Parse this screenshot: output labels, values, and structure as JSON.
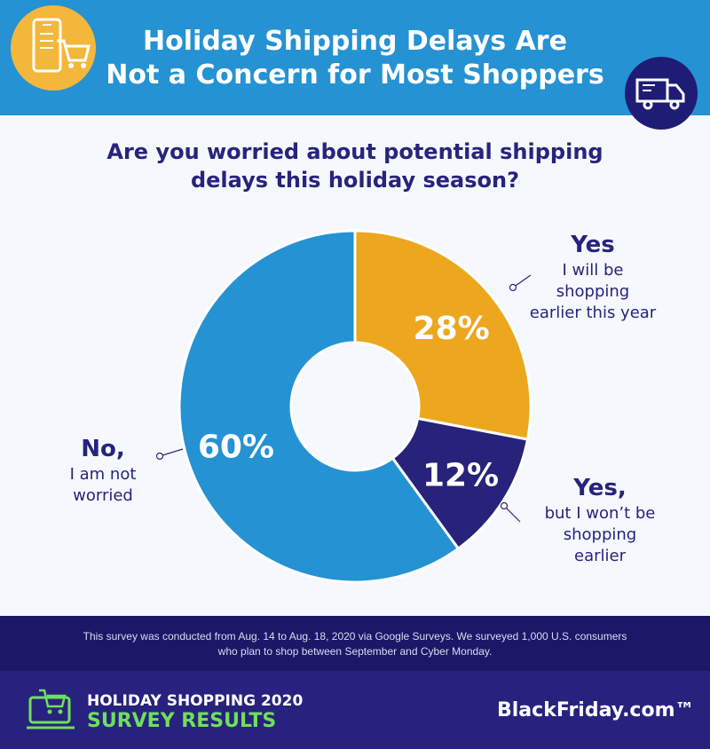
{
  "header": {
    "title_line1": "Holiday Shipping Delays Are",
    "title_line2": "Not a Concern for Most Shoppers",
    "left_icon": "phone-cart-icon",
    "right_icon": "delivery-truck-icon"
  },
  "colors": {
    "header_bg": "#2592d3",
    "yes_shopping_earlier": "#eda71e",
    "yes_not_earlier": "#27227a",
    "no_not_worried": "#2592d3",
    "text_dark": "#27247d",
    "accent_green": "#6fe05a"
  },
  "question": {
    "line1": "Are you worried about potential shipping",
    "line2": "delays this holiday season?"
  },
  "chart_data": {
    "type": "pie",
    "donut": true,
    "categories": [
      "Yes, I will be shopping earlier this year",
      "Yes, but I won't be shopping earlier",
      "No, I am not worried"
    ],
    "values": [
      28,
      12,
      60
    ],
    "value_labels": [
      "28%",
      "12%",
      "60%"
    ],
    "colors": [
      "#eda71e",
      "#27227a",
      "#2592d3"
    ],
    "labels": [
      {
        "title": "Yes",
        "lines": [
          "I will be",
          "shopping",
          "earlier this year"
        ],
        "side": "right-top"
      },
      {
        "title": "Yes,",
        "lines": [
          "but I won’t be",
          "shopping",
          "earlier"
        ],
        "side": "right-bottom"
      },
      {
        "title": "No,",
        "lines": [
          "I am not",
          "worried"
        ],
        "side": "left"
      }
    ]
  },
  "footnote": {
    "line1": "This survey was conducted from Aug. 14 to Aug. 18, 2020 via Google Surveys. We surveyed 1,000 U.S. consumers",
    "line2": "who plan to shop between September and Cyber Monday."
  },
  "footer": {
    "subtitle_line1": "HOLIDAY SHOPPING 2020",
    "subtitle_line2": "SURVEY RESULTS",
    "brand": "BlackFriday.com™",
    "cart_icon": "shopping-cart-icon"
  }
}
